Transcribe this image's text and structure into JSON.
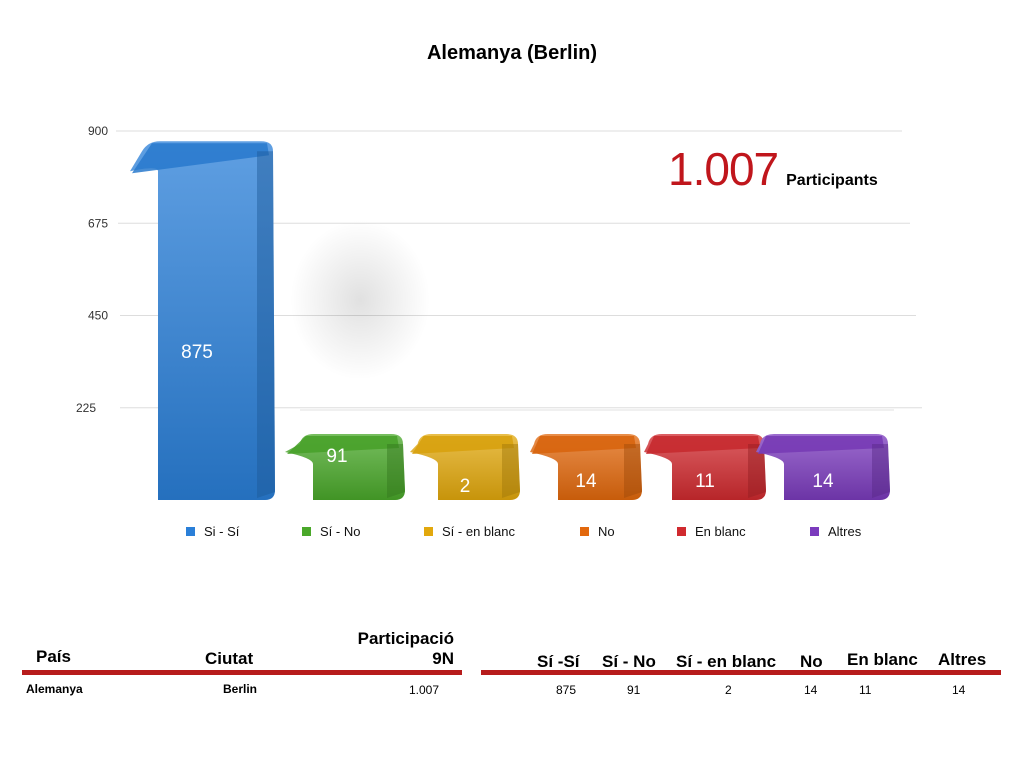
{
  "chart_data": {
    "type": "bar",
    "title": "Alemanya (Berlin)",
    "categories": [
      "Si - Sí",
      "Sí - No",
      "Sí - en blanc",
      "No",
      "En blanc",
      "Altres"
    ],
    "values": [
      875,
      91,
      2,
      14,
      11,
      14
    ],
    "colors": [
      "#2a7fd8",
      "#4aa82a",
      "#e2a80d",
      "#e2680d",
      "#d02a2f",
      "#7b3bbd"
    ],
    "y_ticks": [
      "225",
      "450",
      "675",
      "900"
    ],
    "ylim": [
      0,
      900
    ],
    "grid": true,
    "legend_position": "bottom",
    "annotation": {
      "value": "1.007",
      "label": "Participants"
    }
  },
  "table": {
    "left_headers": {
      "country": "País",
      "city": "Ciutat",
      "participation_line1": "Participació",
      "participation_line2": "9N"
    },
    "right_headers": [
      "Sí -Sí",
      "Sí - No",
      "Sí - en blanc",
      "No",
      "En blanc",
      "Altres"
    ],
    "row": {
      "country": "Alemanya",
      "city": "Berlin",
      "participation": "1.007",
      "values": [
        "875",
        "91",
        "2",
        "14",
        "11",
        "14"
      ]
    }
  }
}
